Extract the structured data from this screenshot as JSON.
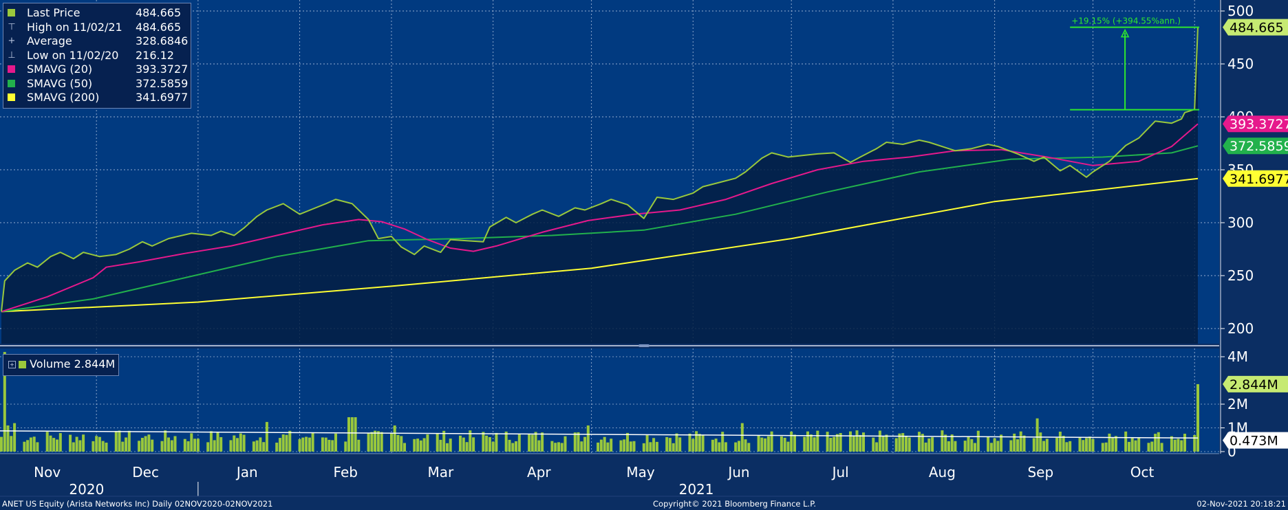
{
  "legend": {
    "rows": [
      {
        "marker": "square",
        "color": "#9ac83c",
        "label": "Last Price",
        "value": "484.665"
      },
      {
        "marker": "high-glyph",
        "color": "#b8c4de",
        "label": "High on 11/02/21",
        "value": "484.665"
      },
      {
        "marker": "average-glyph",
        "color": "#b8c4de",
        "label": "Average",
        "value": "328.6846"
      },
      {
        "marker": "low-glyph",
        "color": "#b8c4de",
        "label": "Low on 11/02/20",
        "value": "216.12"
      },
      {
        "marker": "square",
        "color": "#e6198c",
        "label": "SMAVG (20)",
        "value": "393.3727"
      },
      {
        "marker": "square",
        "color": "#22b14c",
        "label": "SMAVG (50)",
        "value": "372.5859"
      },
      {
        "marker": "square",
        "color": "#ffff33",
        "label": "SMAVG (200)",
        "value": "341.6977"
      }
    ]
  },
  "volume_legend": {
    "label": "Volume 2.844M",
    "color": "#9ac83c"
  },
  "footer": {
    "left": "ANET US Equity (Arista Networks Inc)  Daily 02NOV2020-02NOV2021",
    "center": "Copyright© 2021 Bloomberg Finance L.P.",
    "right": "02-Nov-2021 20:18:21"
  },
  "colors": {
    "background": "#0b2e63",
    "plot_area": "#013a80",
    "price_fill": "#041f43",
    "grid": "#c8d4ea",
    "last_price": "#9ac83c",
    "sma20": "#e6198c",
    "sma50": "#22b14c",
    "sma200": "#ffff33",
    "volume_avg_line": "#ffffff",
    "annotation": "#2ee62e"
  },
  "chart_data": {
    "type": "line",
    "x_range": [
      "2020-11-02",
      "2021-11-02"
    ],
    "x_axis": {
      "months": [
        "Nov",
        "Dec",
        "Jan",
        "Feb",
        "Mar",
        "Apr",
        "May",
        "Jun",
        "Jul",
        "Aug",
        "Sep",
        "Oct"
      ],
      "years": [
        "2020",
        "2021"
      ]
    },
    "price_panel": {
      "y_ticks": [
        "200",
        "250",
        "300",
        "350",
        "400",
        "450",
        "500"
      ],
      "ylim": [
        185,
        508
      ],
      "series": [
        {
          "name": "Last Price",
          "color": "#9ac83c",
          "points": [
            [
              "2020-11-02",
              216
            ],
            [
              "2020-11-03",
              245
            ],
            [
              "2020-11-06",
              255
            ],
            [
              "2020-11-10",
              262
            ],
            [
              "2020-11-13",
              258
            ],
            [
              "2020-11-17",
              268
            ],
            [
              "2020-11-20",
              272
            ],
            [
              "2020-11-24",
              266
            ],
            [
              "2020-11-27",
              272
            ],
            [
              "2020-12-02",
              268
            ],
            [
              "2020-12-07",
              270
            ],
            [
              "2020-12-11",
              275
            ],
            [
              "2020-12-15",
              282
            ],
            [
              "2020-12-18",
              278
            ],
            [
              "2020-12-23",
              285
            ],
            [
              "2020-12-30",
              290
            ],
            [
              "2021-01-05",
              288
            ],
            [
              "2021-01-08",
              292
            ],
            [
              "2021-01-12",
              288
            ],
            [
              "2021-01-15",
              295
            ],
            [
              "2021-01-19",
              306
            ],
            [
              "2021-01-22",
              312
            ],
            [
              "2021-01-27",
              318
            ],
            [
              "2021-02-01",
              308
            ],
            [
              "2021-02-05",
              313
            ],
            [
              "2021-02-09",
              318
            ],
            [
              "2021-02-12",
              322
            ],
            [
              "2021-02-17",
              318
            ],
            [
              "2021-02-22",
              303
            ],
            [
              "2021-02-25",
              285
            ],
            [
              "2021-03-01",
              287
            ],
            [
              "2021-03-04",
              277
            ],
            [
              "2021-03-08",
              270
            ],
            [
              "2021-03-11",
              278
            ],
            [
              "2021-03-16",
              272
            ],
            [
              "2021-03-19",
              284
            ],
            [
              "2021-03-24",
              283
            ],
            [
              "2021-03-29",
              282
            ],
            [
              "2021-03-31",
              296
            ],
            [
              "2021-04-05",
              305
            ],
            [
              "2021-04-08",
              300
            ],
            [
              "2021-04-13",
              308
            ],
            [
              "2021-04-16",
              312
            ],
            [
              "2021-04-21",
              306
            ],
            [
              "2021-04-26",
              314
            ],
            [
              "2021-04-29",
              312
            ],
            [
              "2021-05-04",
              318
            ],
            [
              "2021-05-07",
              322
            ],
            [
              "2021-05-12",
              317
            ],
            [
              "2021-05-17",
              304
            ],
            [
              "2021-05-21",
              324
            ],
            [
              "2021-05-26",
              322
            ],
            [
              "2021-06-01",
              328
            ],
            [
              "2021-06-04",
              334
            ],
            [
              "2021-06-09",
              338
            ],
            [
              "2021-06-14",
              342
            ],
            [
              "2021-06-17",
              348
            ],
            [
              "2021-06-22",
              361
            ],
            [
              "2021-06-25",
              366
            ],
            [
              "2021-06-30",
              362
            ],
            [
              "2021-07-06",
              364
            ],
            [
              "2021-07-09",
              365
            ],
            [
              "2021-07-14",
              366
            ],
            [
              "2021-07-19",
              357
            ],
            [
              "2021-07-22",
              362
            ],
            [
              "2021-07-27",
              370
            ],
            [
              "2021-07-30",
              376
            ],
            [
              "2021-08-04",
              374
            ],
            [
              "2021-08-09",
              378
            ],
            [
              "2021-08-12",
              376
            ],
            [
              "2021-08-17",
              371
            ],
            [
              "2021-08-20",
              368
            ],
            [
              "2021-08-25",
              370
            ],
            [
              "2021-08-30",
              374
            ],
            [
              "2021-09-02",
              372
            ],
            [
              "2021-09-08",
              365
            ],
            [
              "2021-09-13",
              358
            ],
            [
              "2021-09-16",
              362
            ],
            [
              "2021-09-21",
              349
            ],
            [
              "2021-09-24",
              354
            ],
            [
              "2021-09-29",
              343
            ],
            [
              "2021-10-01",
              348
            ],
            [
              "2021-10-06",
              358
            ],
            [
              "2021-10-11",
              373
            ],
            [
              "2021-10-15",
              380
            ],
            [
              "2021-10-20",
              396
            ],
            [
              "2021-10-25",
              394
            ],
            [
              "2021-10-28",
              398
            ],
            [
              "2021-10-29",
              404
            ],
            [
              "2021-11-01",
              407
            ],
            [
              "2021-11-02",
              484.665
            ]
          ]
        },
        {
          "name": "SMAVG (20)",
          "color": "#e6198c",
          "points": [
            [
              "2020-11-02",
              216
            ],
            [
              "2020-11-16",
              230
            ],
            [
              "2020-11-30",
              248
            ],
            [
              "2020-12-04",
              258
            ],
            [
              "2020-12-14",
              263
            ],
            [
              "2020-12-28",
              271
            ],
            [
              "2021-01-11",
              278
            ],
            [
              "2021-01-25",
              288
            ],
            [
              "2021-02-08",
              298
            ],
            [
              "2021-02-19",
              303
            ],
            [
              "2021-02-26",
              301
            ],
            [
              "2021-03-05",
              294
            ],
            [
              "2021-03-12",
              284
            ],
            [
              "2021-03-19",
              276
            ],
            [
              "2021-03-26",
              273
            ],
            [
              "2021-04-02",
              278
            ],
            [
              "2021-04-16",
              291
            ],
            [
              "2021-04-30",
              302
            ],
            [
              "2021-05-14",
              308
            ],
            [
              "2021-05-28",
              312
            ],
            [
              "2021-06-11",
              322
            ],
            [
              "2021-06-25",
              337
            ],
            [
              "2021-07-09",
              350
            ],
            [
              "2021-07-23",
              358
            ],
            [
              "2021-08-06",
              362
            ],
            [
              "2021-08-20",
              368
            ],
            [
              "2021-09-03",
              369
            ],
            [
              "2021-09-17",
              362
            ],
            [
              "2021-10-01",
              354
            ],
            [
              "2021-10-15",
              358
            ],
            [
              "2021-10-25",
              372
            ],
            [
              "2021-11-02",
              393.3727
            ]
          ]
        },
        {
          "name": "SMAVG (50)",
          "color": "#22b14c",
          "points": [
            [
              "2020-11-02",
              216
            ],
            [
              "2020-11-30",
              228
            ],
            [
              "2020-12-28",
              248
            ],
            [
              "2021-01-25",
              268
            ],
            [
              "2021-02-22",
              283
            ],
            [
              "2021-03-22",
              285
            ],
            [
              "2021-04-19",
              288
            ],
            [
              "2021-05-17",
              293
            ],
            [
              "2021-06-14",
              308
            ],
            [
              "2021-07-12",
              329
            ],
            [
              "2021-08-09",
              348
            ],
            [
              "2021-09-06",
              360
            ],
            [
              "2021-10-04",
              362
            ],
            [
              "2021-10-25",
              366
            ],
            [
              "2021-11-02",
              372.5859
            ]
          ]
        },
        {
          "name": "SMAVG (200)",
          "color": "#ffff33",
          "points": [
            [
              "2020-11-02",
              216
            ],
            [
              "2021-01-01",
              225
            ],
            [
              "2021-03-01",
              240
            ],
            [
              "2021-05-01",
              257
            ],
            [
              "2021-07-01",
              285
            ],
            [
              "2021-09-01",
              320
            ],
            [
              "2021-11-02",
              341.6977
            ]
          ]
        }
      ],
      "value_tags": [
        {
          "label": "484.665",
          "value": 484.665,
          "bg": "#c6ea72",
          "fg": "#000000"
        },
        {
          "label": "393.3727",
          "value": 393.3727,
          "bg": "#e6198c",
          "fg": "#ffffff"
        },
        {
          "label": "372.5859",
          "value": 372.5859,
          "bg": "#22b14c",
          "fg": "#ffffff"
        },
        {
          "label": "341.6977",
          "value": 341.6977,
          "bg": "#ffff33",
          "fg": "#000000"
        }
      ],
      "annotation": {
        "label": "+19.15% (+394.55%ann.)",
        "start_date": "2021-09-24",
        "end_date": "2021-11-02",
        "base_value": 406.7,
        "top_value": 484.665
      }
    },
    "volume_panel": {
      "y_ticks": [
        "0",
        "1M",
        "2M",
        "4M"
      ],
      "ylim": [
        0,
        4.2
      ],
      "last": {
        "label": "2.844M",
        "value": 2.844
      },
      "average": {
        "label": "0.473M",
        "value": 0.473
      }
    }
  }
}
